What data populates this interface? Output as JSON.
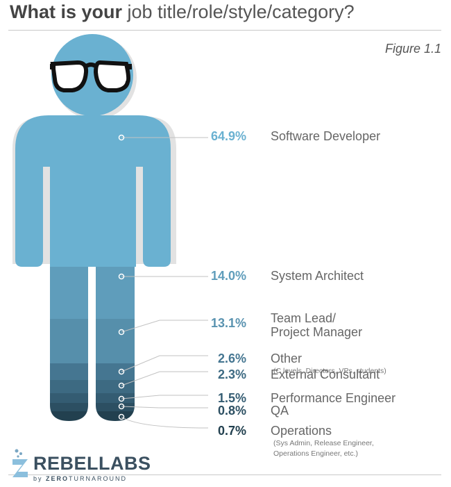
{
  "header": {
    "title_bold": "What is your",
    "title_rest": " job title/role/style/category?",
    "figure_label": "Figure 1.1"
  },
  "chart_data": {
    "type": "pictogram",
    "categories": [
      "Software Developer",
      "System Architect",
      "Team Lead/\nProject Manager",
      "Other",
      "External Consultant",
      "Performance Engineer",
      "QA",
      "Operations"
    ],
    "values": [
      64.9,
      14.0,
      13.1,
      2.6,
      2.3,
      1.5,
      0.8,
      0.7
    ],
    "unit": "%",
    "rows": [
      {
        "pct": "64.9%",
        "lines": [
          "Software Developer"
        ],
        "sub": [],
        "color": "#6ab1d1",
        "pct_color": "#6ab1d1"
      },
      {
        "pct": "14.0%",
        "lines": [
          "System Architect"
        ],
        "sub": [],
        "color": "#5f9dbb",
        "pct_color": "#5f9dbb"
      },
      {
        "pct": "13.1%",
        "lines": [
          "Team Lead/",
          "Project Manager"
        ],
        "sub": [],
        "color": "#568fab",
        "pct_color": "#5a93b0"
      },
      {
        "pct": "2.6%",
        "lines": [
          "Other"
        ],
        "sub": [
          "(C levels, Directors, VPs, students)"
        ],
        "color": "#457691",
        "pct_color": "#457691"
      },
      {
        "pct": "2.3%",
        "lines": [
          "External Consultant"
        ],
        "sub": [],
        "color": "#3d6a82",
        "pct_color": "#3d6a82"
      },
      {
        "pct": "1.5%",
        "lines": [
          "Performance Engineer"
        ],
        "sub": [],
        "color": "#345c72",
        "pct_color": "#345c72"
      },
      {
        "pct": "0.8%",
        "lines": [
          "QA"
        ],
        "sub": [],
        "color": "#2c4f62",
        "pct_color": "#2c4f62"
      },
      {
        "pct": "0.7%",
        "lines": [
          "Operations"
        ],
        "sub": [
          "(Sys Admin, Release Engineer,",
          "Operations Engineer, etc.)"
        ],
        "color": "#22404f",
        "pct_color": "#22404f"
      }
    ]
  },
  "logo": {
    "main": "REBELLABS",
    "sub_prefix": "by ",
    "sub_zero": "ZERO",
    "sub_rest": "TURNAROUND"
  }
}
